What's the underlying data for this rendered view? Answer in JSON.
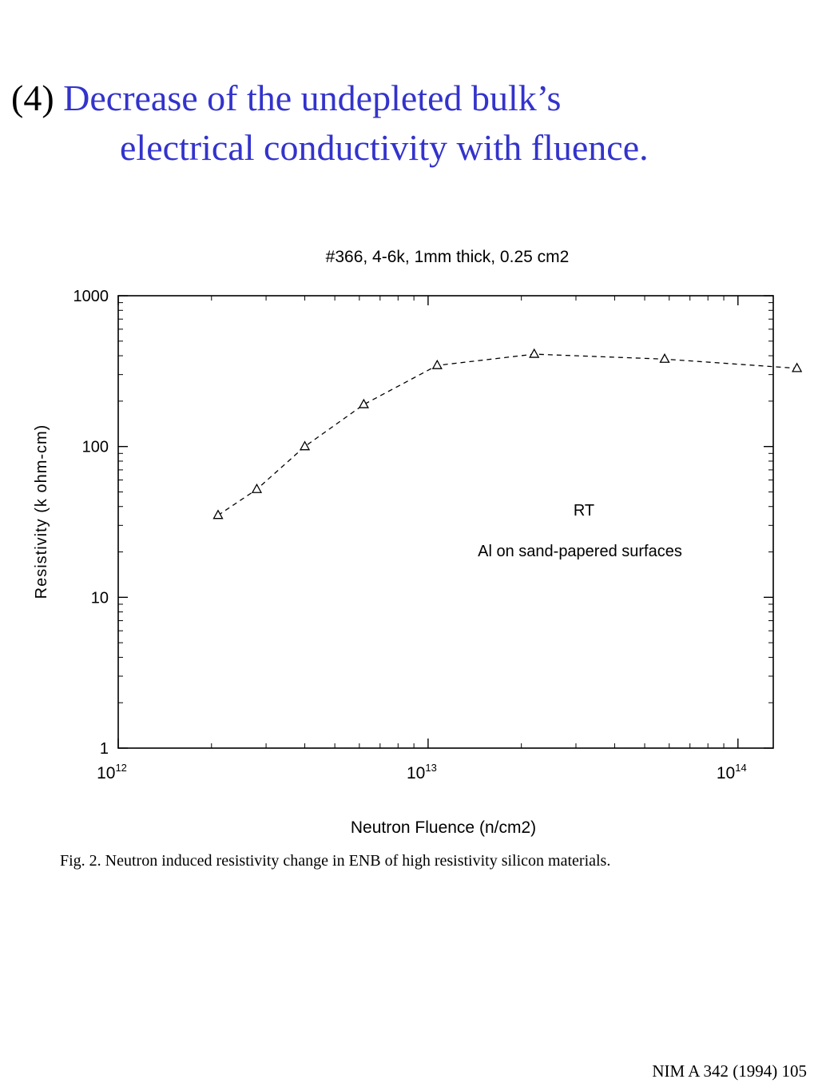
{
  "slide": {
    "number": "(4)",
    "title_line1": "Decrease of the undepleted bulk’s",
    "title_line2": "electrical conductivity with fluence.",
    "citation": "NIM A 342 (1994) 105"
  },
  "figure_caption": "Fig. 2. Neutron induced resistivity change in ENB of high resistivity silicon materials.",
  "colors": {
    "title": "#3333cc",
    "ink": "#000000"
  },
  "chart_data": {
    "type": "scatter",
    "title": "#366, 4-6k, 1mm thick, 0.25 cm2",
    "xlabel": "Neutron Fluence (n/cm2)",
    "ylabel": "Resistivity (k ohm-cm)",
    "xscale": "log",
    "yscale": "log",
    "xlim": [
      1000000000000.0,
      130000000000000.0
    ],
    "ylim": [
      1,
      1000
    ],
    "x_ticks": [
      {
        "base": "10",
        "exp": "12",
        "value": 1000000000000.0
      },
      {
        "base": "10",
        "exp": "13",
        "value": 10000000000000.0
      },
      {
        "base": "10",
        "exp": "14",
        "value": 100000000000000.0
      }
    ],
    "y_ticks": [
      {
        "label": "1",
        "value": 1
      },
      {
        "label": "10",
        "value": 10
      },
      {
        "label": "100",
        "value": 100
      },
      {
        "label": "1000",
        "value": 1000
      }
    ],
    "grid": false,
    "marker": "open-triangle",
    "line_style": "dashed",
    "series": [
      {
        "x": [
          2100000000000.0,
          2800000000000.0,
          4000000000000.0,
          6200000000000.0,
          10700000000000.0,
          22000000000000.0,
          58000000000000.0,
          155000000000000.0
        ],
        "y": [
          35,
          52,
          100,
          190,
          345,
          410,
          380,
          330
        ]
      }
    ],
    "annotations": [
      "RT",
      "Al on sand-papered surfaces"
    ]
  }
}
